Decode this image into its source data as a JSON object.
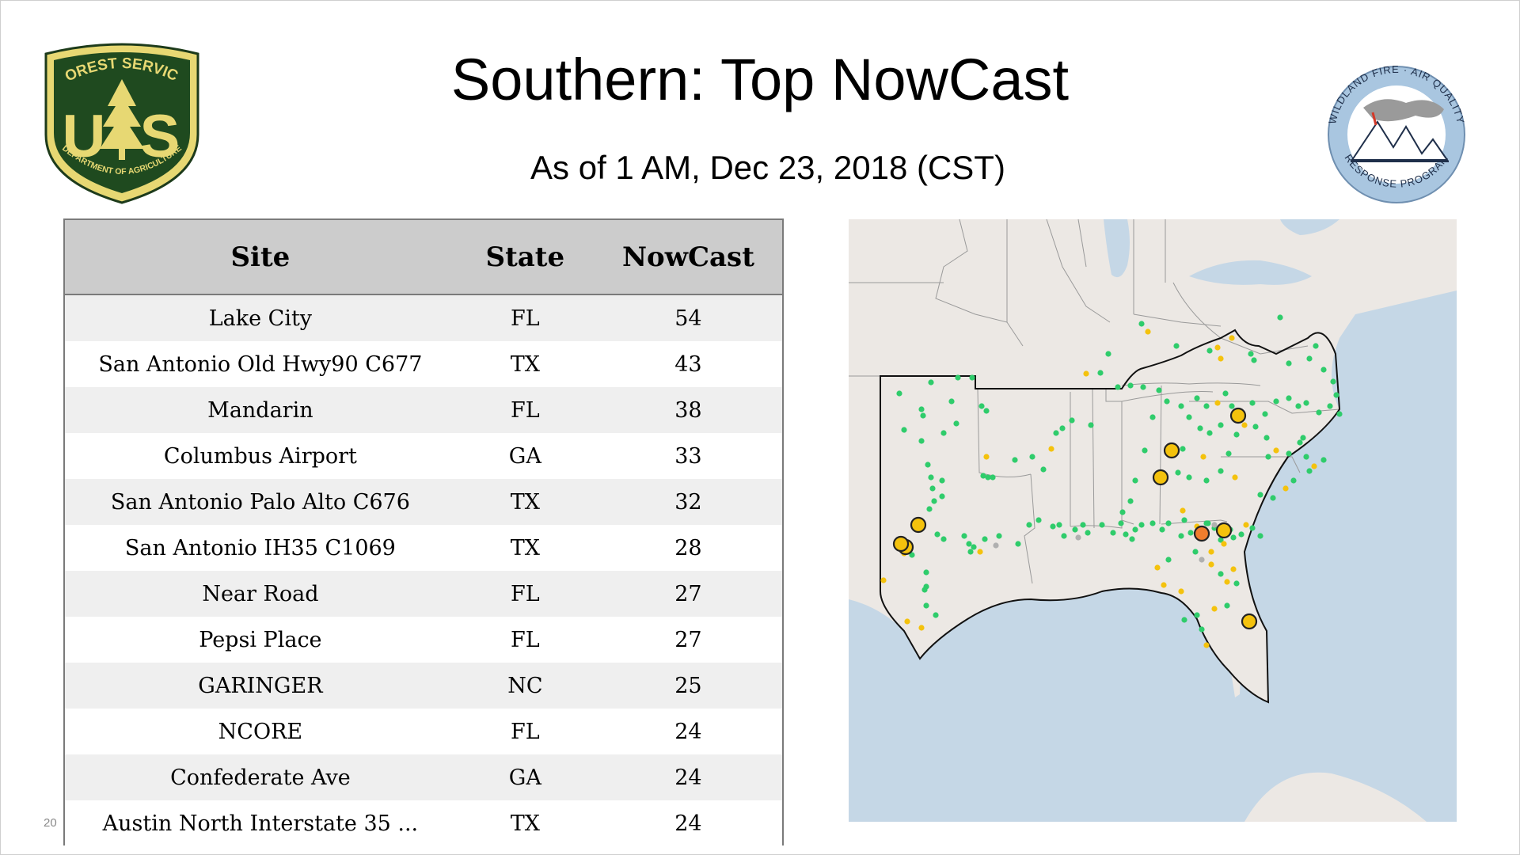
{
  "slide": {
    "title": "Southern: Top NowCast",
    "subtitle": "As of  1 AM, Dec 23, 2018 (CST)",
    "page_number": "20"
  },
  "logos": {
    "left": {
      "top_text": "FOREST SERVICE",
      "center_text": "US",
      "bottom_text": "DEPARTMENT OF AGRICULTURE"
    },
    "right": {
      "top_text": "WILDLAND FIRE · AIR QUALITY",
      "bottom_text": "RESPONSE PROGRAM"
    }
  },
  "table": {
    "headers": {
      "site": "Site",
      "state": "State",
      "nowcast": "NowCast"
    },
    "rows": [
      {
        "site": "Lake City",
        "state": "FL",
        "nowcast": "54"
      },
      {
        "site": "San Antonio Old Hwy90 C677",
        "state": "TX",
        "nowcast": "43"
      },
      {
        "site": "Mandarin",
        "state": "FL",
        "nowcast": "38"
      },
      {
        "site": "Columbus Airport",
        "state": "GA",
        "nowcast": "33"
      },
      {
        "site": "San Antonio Palo Alto C676",
        "state": "TX",
        "nowcast": "32"
      },
      {
        "site": "San Antonio IH35 C1069",
        "state": "TX",
        "nowcast": "28"
      },
      {
        "site": "Near Road",
        "state": "FL",
        "nowcast": "27"
      },
      {
        "site": "Pepsi Place",
        "state": "FL",
        "nowcast": "27"
      },
      {
        "site": "GARINGER",
        "state": "NC",
        "nowcast": "25"
      },
      {
        "site": "NCORE",
        "state": "FL",
        "nowcast": "24"
      },
      {
        "site": "Confederate Ave",
        "state": "GA",
        "nowcast": "24"
      },
      {
        "site": "Austin North Interstate 35 ...",
        "state": "TX",
        "nowcast": "24"
      }
    ]
  },
  "map": {
    "colors": {
      "land": "#ece8e4",
      "water": "#c5d7e6",
      "good": "#2fcc6b",
      "moderate": "#f4c20d",
      "usg": "#f07d2e",
      "no_data": "#b0b0b0",
      "border": "#9a9a9a",
      "region_outline": "#111111"
    }
  }
}
